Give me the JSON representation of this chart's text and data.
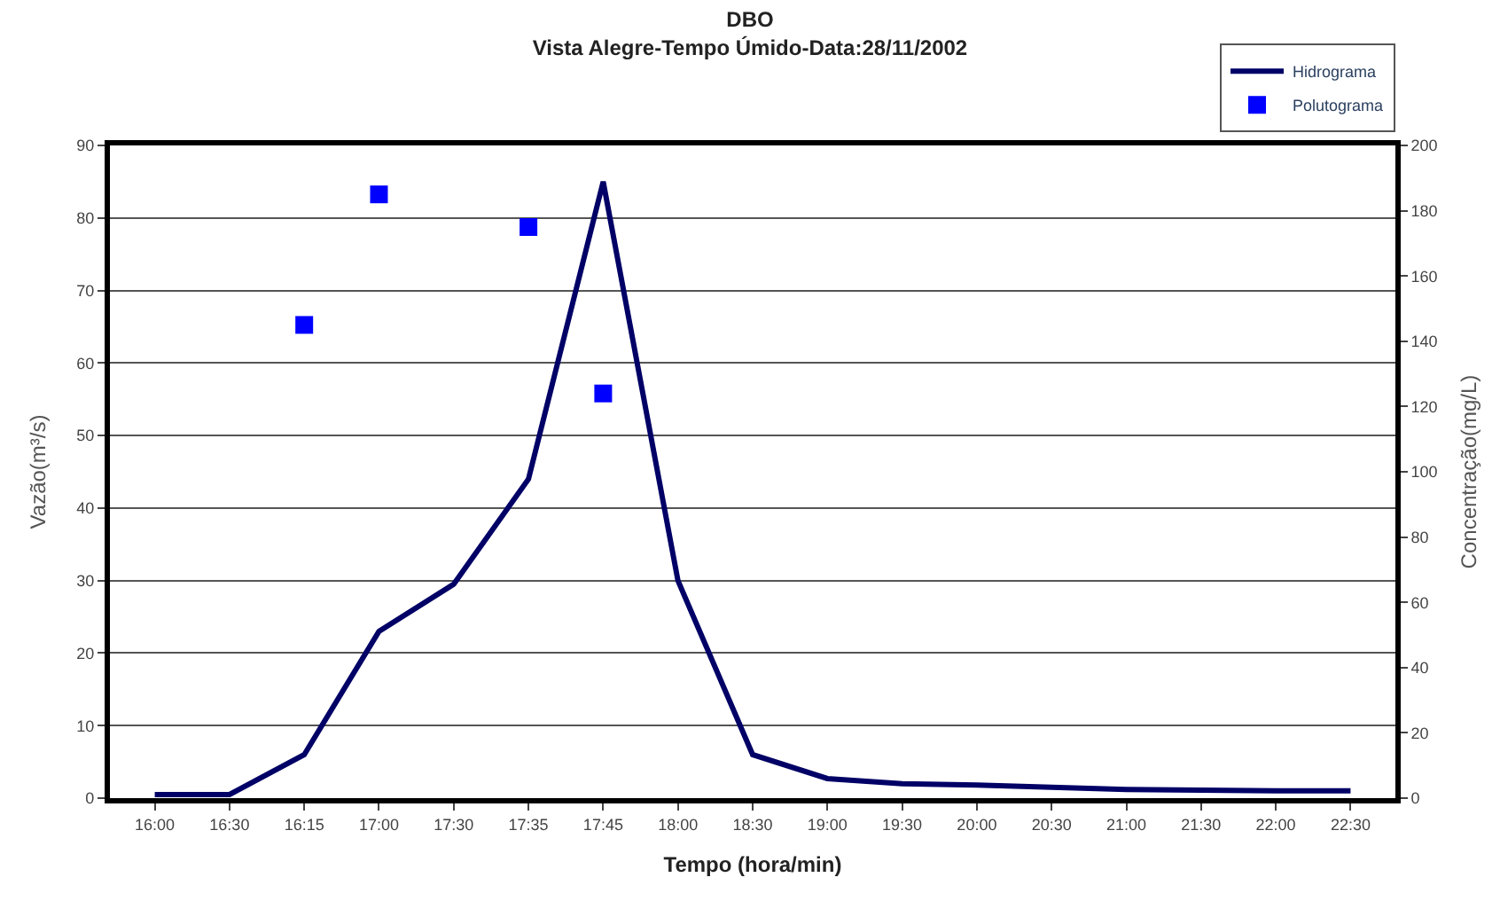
{
  "chart_data": {
    "type": "line",
    "title": "DBO",
    "subtitle": "Vista Alegre-Tempo Úmido-Data:28/11/2002",
    "xlabel": "Tempo (hora/min)",
    "ylabel": "Vazão(m³/s)",
    "y2label": "Concentração(mg/L)",
    "categories": [
      "16:00",
      "16:30",
      "16:15",
      "17:00",
      "17:30",
      "17:35",
      "17:45",
      "18:00",
      "18:30",
      "19:00",
      "19:30",
      "20:00",
      "20:30",
      "21:00",
      "21:30",
      "22:00",
      "22:30"
    ],
    "series": [
      {
        "name": "Hidrograma",
        "color": "#000066",
        "marker": "none",
        "values": [
          0.5,
          0.5,
          6,
          23,
          29.5,
          44,
          85,
          30,
          6,
          2.7,
          2,
          1.8,
          1.5,
          1.2,
          1.1,
          1,
          1
        ]
      },
      {
        "name": "Polutograma",
        "type": "scatter",
        "axis": "y2",
        "color": "#0000ff",
        "marker": "square",
        "values": [
          null,
          null,
          145,
          185,
          null,
          175,
          124,
          null,
          null,
          null,
          null,
          null,
          null,
          null,
          null,
          null,
          null
        ]
      }
    ],
    "ylim": [
      0,
      90
    ],
    "yticks": [
      0,
      10,
      20,
      30,
      40,
      50,
      60,
      70,
      80,
      90
    ],
    "y2lim": [
      0,
      200
    ],
    "y2ticks": [
      0,
      20,
      40,
      60,
      80,
      100,
      120,
      140,
      160,
      180,
      200
    ],
    "grid": "y",
    "legend": "top right"
  }
}
